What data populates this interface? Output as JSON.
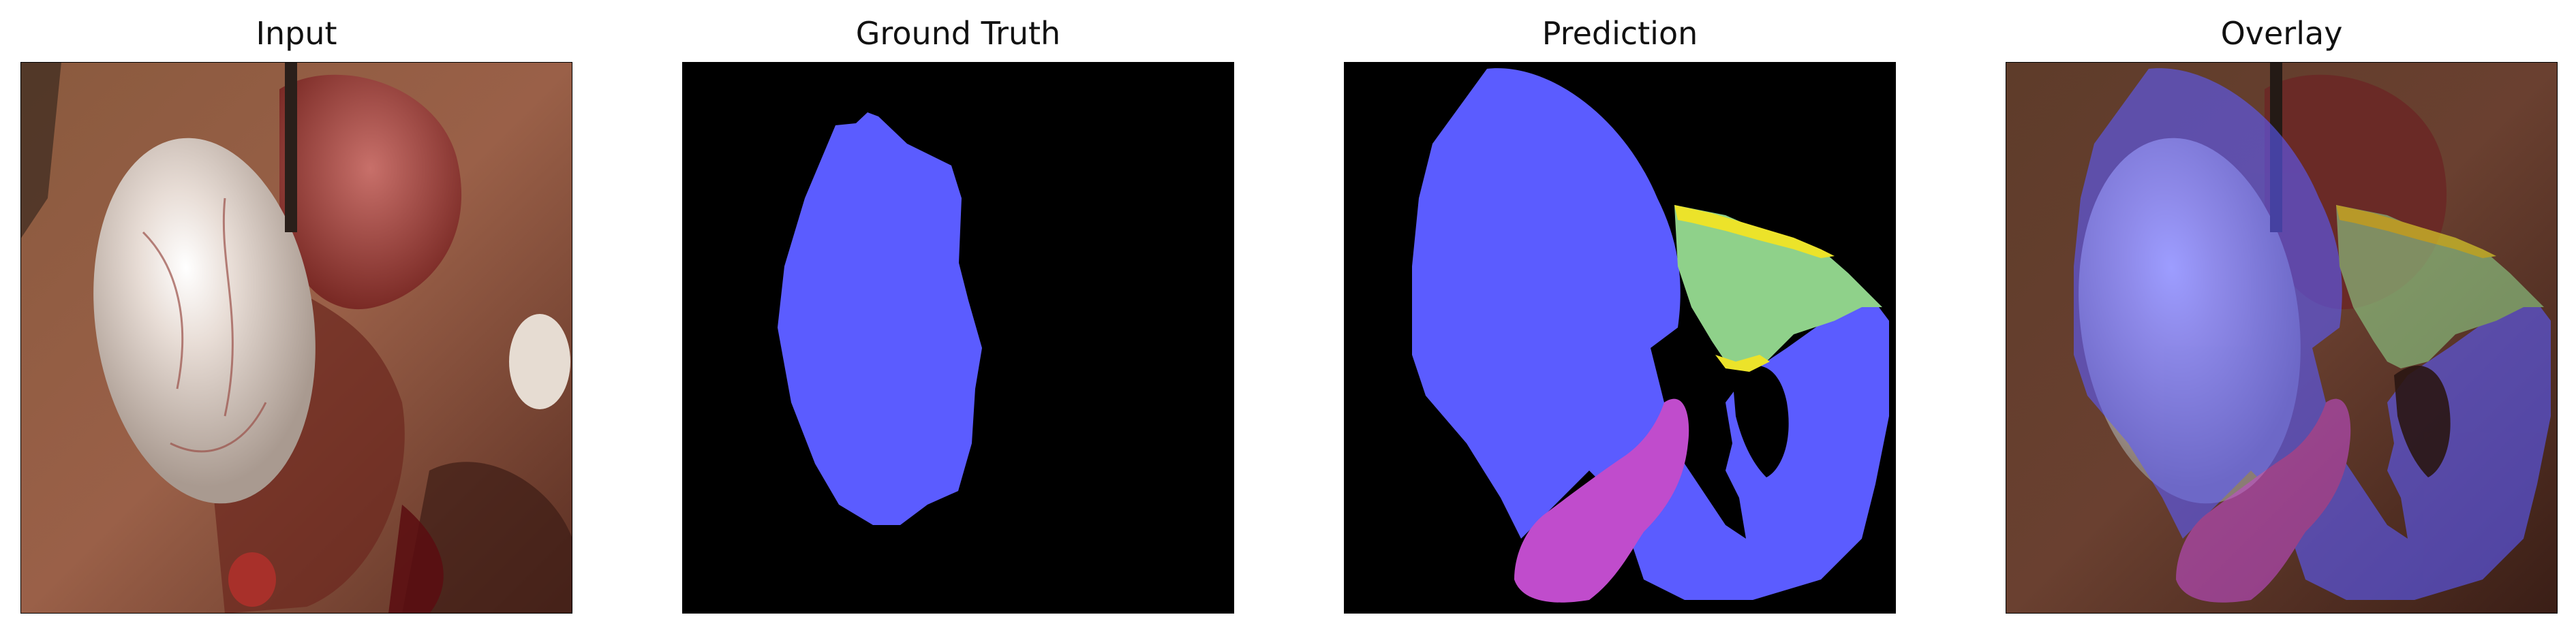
{
  "panels": [
    {
      "title": "Input"
    },
    {
      "title": "Ground Truth"
    },
    {
      "title": "Prediction"
    },
    {
      "title": "Overlay"
    }
  ],
  "colors": {
    "background": "#ffffff",
    "mask_background": "#000000",
    "class_blue": "#5b5cff",
    "class_magenta": "#c04ccc",
    "class_green": "#8fd18a",
    "class_yellow": "#ece32a"
  }
}
